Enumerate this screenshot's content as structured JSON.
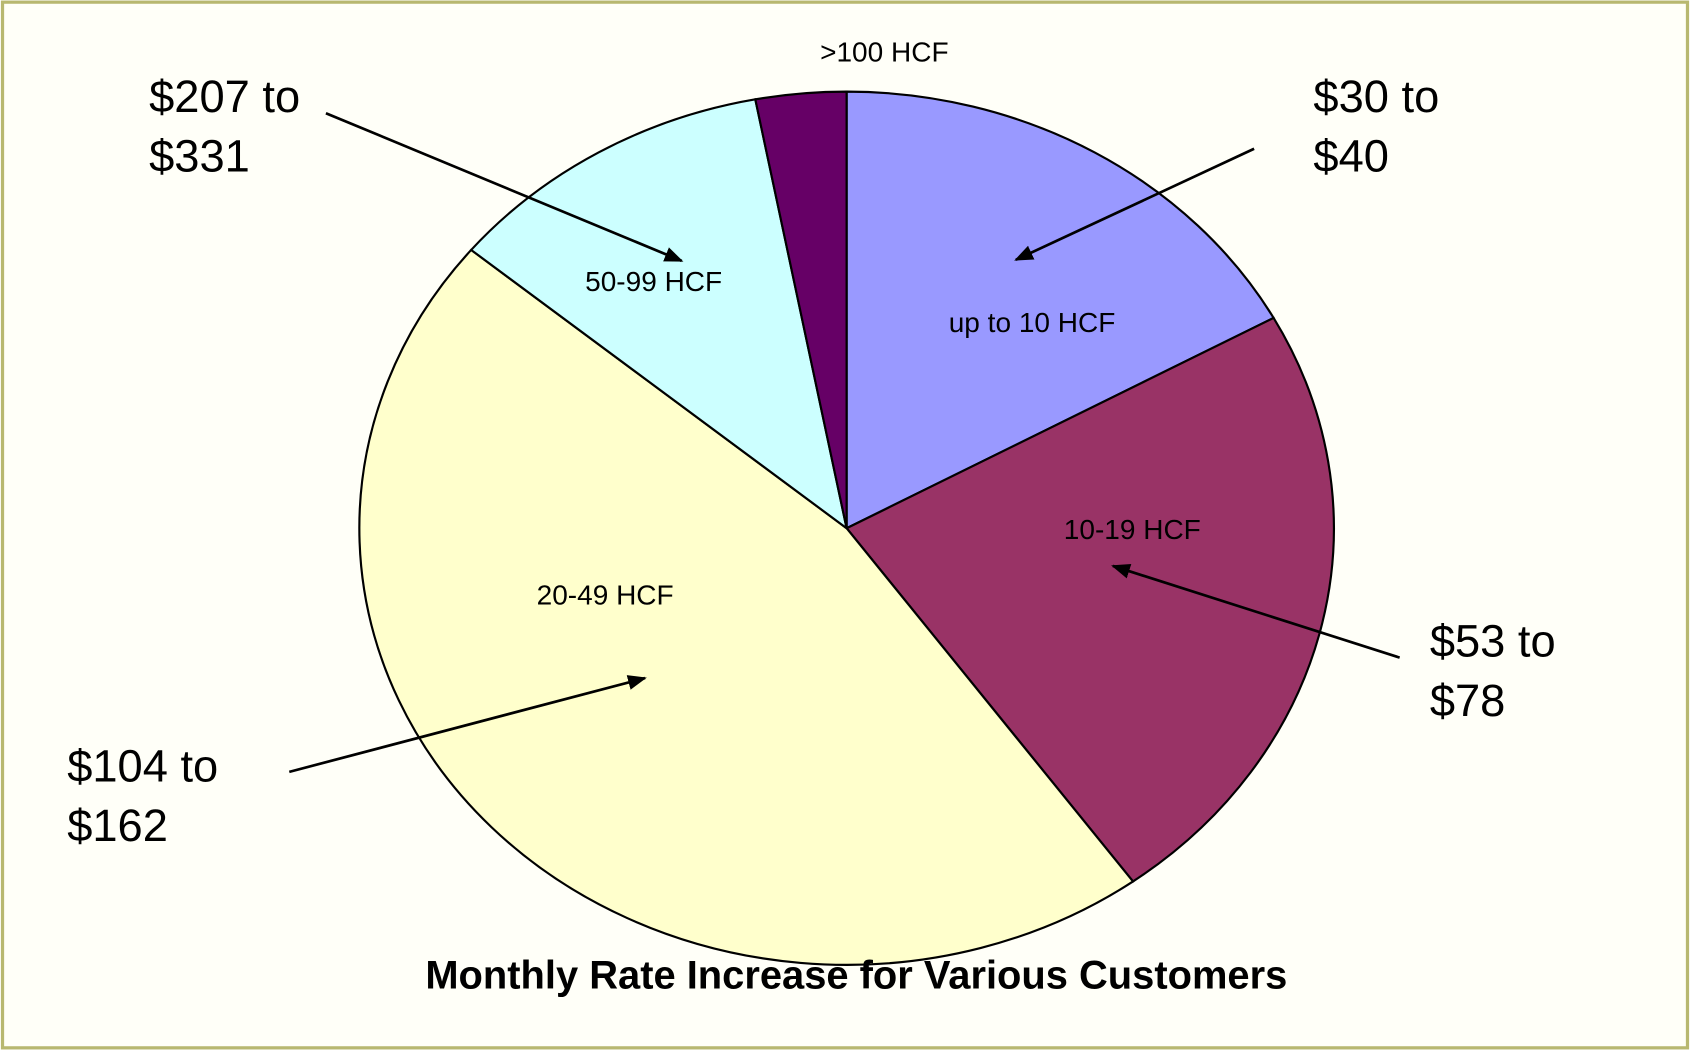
{
  "chart_data": {
    "type": "pie",
    "title": "Monthly Rate Increase for Various Customers",
    "categories": [
      "up to 10 HCF",
      "10-19 HCF",
      "20-49 HCF",
      "50-99 HCF",
      ">100 HCF"
    ],
    "values": [
      17,
      23,
      46,
      11,
      3
    ],
    "colors": [
      "#9999ff",
      "#993366",
      "#ffffcc",
      "#ccffff",
      "#660066"
    ],
    "annotations": [
      {
        "lines": [
          "$30 to",
          "$40"
        ]
      },
      {
        "lines": [
          "$53 to",
          "$78"
        ]
      },
      {
        "lines": [
          "$104 to",
          "$162"
        ]
      },
      {
        "lines": [
          "$207 to",
          "$331"
        ]
      }
    ]
  }
}
